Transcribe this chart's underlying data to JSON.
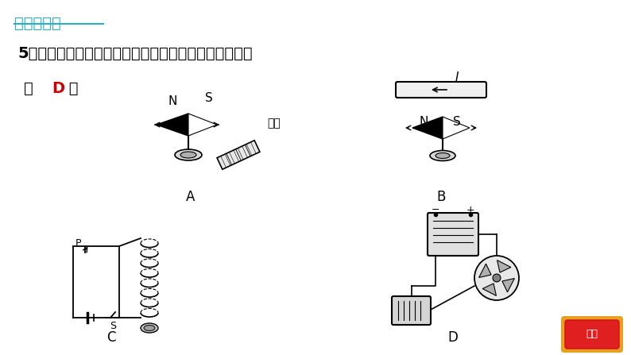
{
  "bg_color": "#ffffff",
  "title_text": "基础巩固练",
  "title_color": "#2ab0c0",
  "question_num": "5．",
  "question_body": "如图所示的实验装置中，能说明电动机工作原理的是",
  "answer_left": "（ ",
  "answer_D": "D",
  "answer_right": " ）",
  "answer_color_D": "#cc0000",
  "label_A": "A",
  "label_B": "B",
  "label_C": "C",
  "label_D": "D",
  "magnet_label": "磁铁",
  "current_label": "I",
  "switch_label": "S",
  "probe_label": "P",
  "nav_text": "返回",
  "nav_bg": "#e02020",
  "nav_border": "#e8a020"
}
